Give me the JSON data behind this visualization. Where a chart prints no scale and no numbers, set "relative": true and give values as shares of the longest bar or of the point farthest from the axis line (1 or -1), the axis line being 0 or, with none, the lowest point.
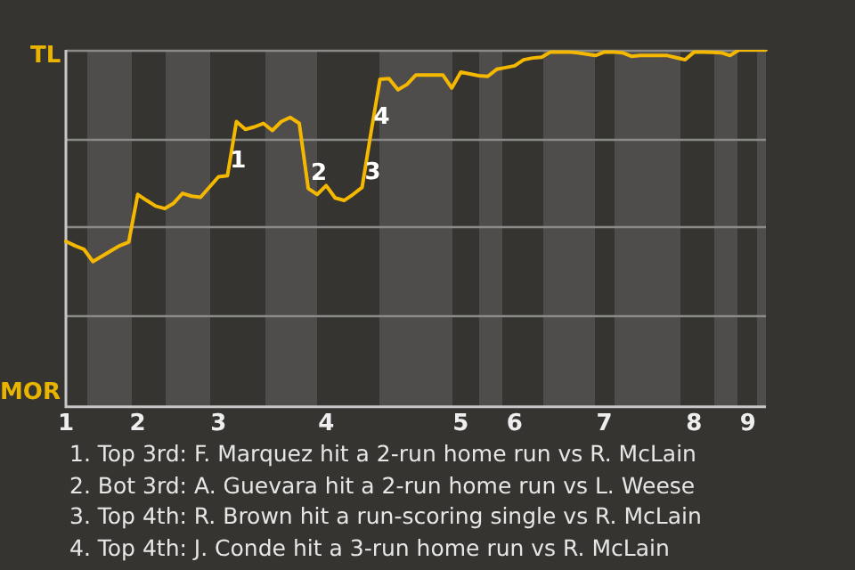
{
  "chart_data": {
    "type": "line",
    "relative": true,
    "categories": [
      "1",
      null,
      null,
      null,
      null,
      null,
      null,
      null,
      "2",
      null,
      null,
      null,
      null,
      null,
      null,
      null,
      null,
      "3",
      null,
      null,
      null,
      null,
      null,
      null,
      null,
      null,
      null,
      null,
      null,
      "4",
      null,
      null,
      null,
      null,
      null,
      null,
      null,
      null,
      null,
      null,
      null,
      null,
      null,
      null,
      "5",
      null,
      null,
      null,
      null,
      null,
      "6",
      null,
      null,
      null,
      null,
      null,
      null,
      null,
      null,
      null,
      "7",
      null,
      null,
      null,
      null,
      null,
      null,
      null,
      null,
      null,
      "8",
      null,
      null,
      null,
      null,
      null,
      "9",
      null,
      null
    ],
    "grid": "y",
    "legend": false,
    "marker": "none",
    "line_style": "solid",
    "series": [
      {
        "color": "#f5b800",
        "values": [
          0.458,
          0.446,
          0.436,
          0.401,
          0.416,
          0.431,
          0.446,
          0.456,
          0.591,
          0.574,
          0.558,
          0.551,
          0.566,
          0.594,
          0.586,
          0.583,
          0.612,
          0.641,
          0.644,
          0.797,
          0.775,
          0.782,
          0.792,
          0.772,
          0.797,
          0.809,
          0.792,
          0.608,
          0.591,
          0.616,
          0.581,
          0.574,
          0.591,
          0.611,
          0.767,
          0.917,
          0.919,
          0.887,
          0.902,
          0.929,
          0.929,
          0.929,
          0.929,
          0.892,
          0.937,
          0.932,
          0.927,
          0.925,
          0.945,
          0.95,
          0.955,
          0.972,
          0.977,
          0.979,
          0.994,
          0.994,
          0.994,
          0.992,
          0.988,
          0.984,
          0.994,
          0.994,
          0.992,
          0.982,
          0.984,
          0.984,
          0.984,
          0.984,
          0.978,
          0.972,
          0.994,
          0.994,
          0.993,
          0.992,
          0.984,
          1,
          1,
          1,
          1
        ]
      }
    ],
    "annotations": [
      "TL",
      "MOR",
      {
        "text": "1",
        "y": 0.644
      },
      {
        "text": "2",
        "y": 0.608
      },
      {
        "text": "3",
        "y": 0.611
      },
      {
        "text": "4",
        "y": 0.767
      },
      "1. Top 3rd: F. Marquez hit a 2-run home run vs R. McLain",
      "2. Bot 3rd: A. Guevara hit a 2-run home run vs L. Weese",
      "3. Top 4th: R. Brown hit a run-scoring single vs R. McLain",
      "4. Top 4th: J. Conde hit a 3-run home run vs R. McLain"
    ]
  }
}
